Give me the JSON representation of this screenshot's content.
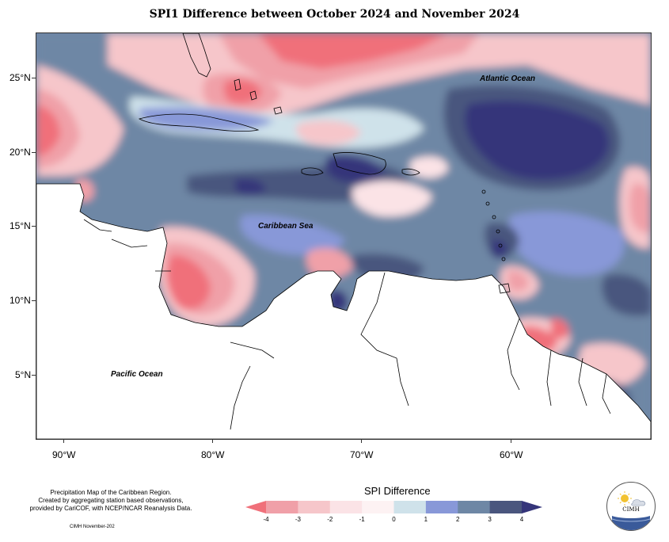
{
  "title": "SPI1 Difference between October 2024 and November 2024",
  "axes": {
    "lat_labels": [
      "25°N",
      "20°N",
      "15°N",
      "10°N",
      "5°N"
    ],
    "lon_labels": [
      "90°W",
      "80°W",
      "70°W",
      "60°W"
    ]
  },
  "labels": {
    "atlantic": "Atlantic Ocean",
    "caribbean": "Caribbean Sea",
    "pacific": "Pacific Ocean"
  },
  "footer": {
    "line1": "Precipitation Map of the Caribbean Region.",
    "line2": "Created by aggregating station based observations,",
    "line3": "provided by CariCOF, with NCEP/NCAR Reanalysis Data.",
    "date": "CIMH November-202"
  },
  "legend": {
    "title": "SPI Difference",
    "ticks": [
      "-4",
      "-3",
      "-2",
      "-1",
      "0",
      "1",
      "2",
      "3",
      "4"
    ],
    "colors": [
      "#f0707a",
      "#f0a0a8",
      "#f6c6ca",
      "#fbe3e6",
      "#fdf2f3",
      "#cfe2ea",
      "#8898d8",
      "#6e87a5",
      "#4a567e",
      "#35357a"
    ]
  },
  "logo": {
    "name": "CIMH"
  }
}
